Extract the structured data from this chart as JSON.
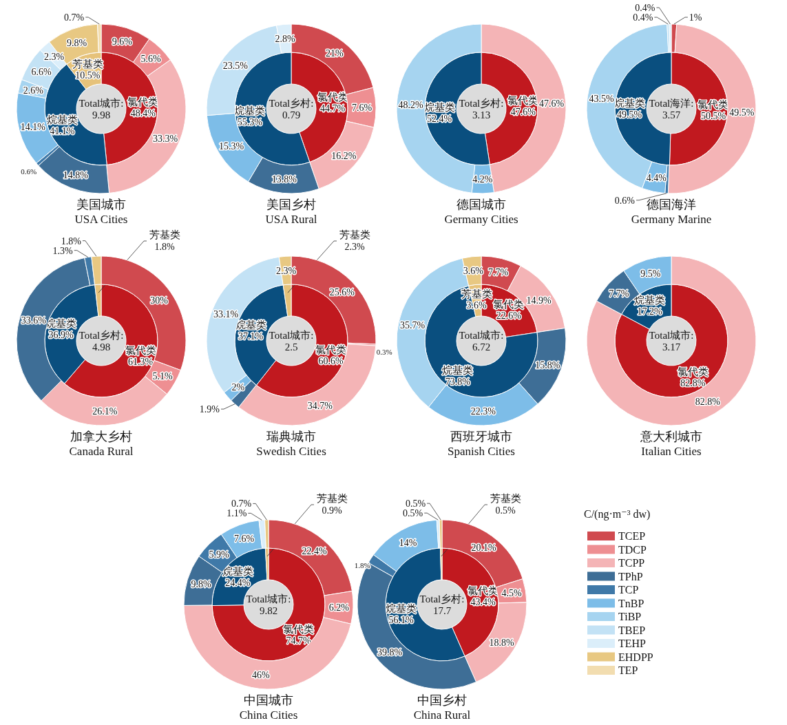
{
  "chart_data": [
    {
      "type": "donut",
      "title": "美国城市",
      "subtitle": "USA Cities",
      "annotations": [
        "Total城市:",
        "9.98"
      ],
      "categories": [
        "氯代类",
        "烷基类",
        "芳基类"
      ],
      "values": [
        48.4,
        41.1,
        10.5
      ],
      "colors": [
        "#c1191f",
        "#0a4f7f",
        "#e6c27a"
      ],
      "value_labels": [
        "48.4%",
        "41.1%",
        "10.5%"
      ]
    },
    {
      "type": "donut",
      "legend": "bottom right",
      "legend_title": "C/(ng·m⁻³ dw)",
      "categories": [
        "TCEP",
        "TDCP",
        "TCPP",
        "TPhP",
        "TCP",
        "TnBP",
        "TiBP",
        "TBEP",
        "TEHP",
        "EHDPP",
        "TEP"
      ],
      "values": [
        9.6,
        5.6,
        33.3,
        14.8,
        0.6,
        14.1,
        2.6,
        6.6,
        2.3,
        9.8,
        0.7
      ],
      "colors": [
        "#d04a4f",
        "#ee8f92",
        "#f4b4b6",
        "#3e6e96",
        "#3f79a8",
        "#7dbde8",
        "#a6d4f0",
        "#c3e2f5",
        "#dbeefa",
        "#e8c882",
        "#f2ddb0"
      ],
      "value_labels": [
        "9.6%",
        "5.6%",
        "33.3%",
        "14.8%",
        "0.6%",
        "14.1%",
        "2.6%",
        "6.6%",
        "2.3%",
        "9.8%",
        "0.7%"
      ]
    },
    {
      "type": "donut",
      "title": "美国乡村",
      "subtitle": "USA Rural",
      "annotations": [
        "Total乡村:",
        "0.79"
      ],
      "categories": [
        "氯代类",
        "烷基类"
      ],
      "values": [
        44.7,
        55.3
      ],
      "colors": [
        "#c1191f",
        "#0a4f7f"
      ],
      "value_labels": [
        "44.7%",
        "55.3%"
      ]
    },
    {
      "type": "donut",
      "categories": [
        null,
        null,
        null,
        null,
        null,
        null,
        null
      ],
      "values": [
        21,
        7.6,
        16.2,
        13.8,
        15.3,
        23.5,
        2.8
      ],
      "colors": [
        "#d04a4f",
        "#ee8f92",
        "#f4b4b6",
        "#3e6e96",
        "#7dbde8",
        "#c3e2f5",
        "#dbeefa"
      ],
      "value_labels": [
        "21%",
        "7.6%",
        "16.2%",
        "13.8%",
        "15.3%",
        "23.5%",
        "2.8%"
      ]
    },
    {
      "type": "donut",
      "title": "德国城市",
      "subtitle": "Germany Cities",
      "annotations": [
        "Total乡村:",
        "3.13"
      ],
      "categories": [
        "氯代类",
        "烷基类"
      ],
      "values": [
        47.6,
        52.4
      ],
      "colors": [
        "#c1191f",
        "#0a4f7f"
      ],
      "value_labels": [
        "47.6%",
        "52.4%"
      ]
    },
    {
      "type": "donut",
      "categories": [
        null,
        null,
        null
      ],
      "values": [
        47.6,
        4.2,
        48.2
      ],
      "colors": [
        "#f4b4b6",
        "#7dbde8",
        "#a6d4f0"
      ],
      "value_labels": [
        "47.6%",
        "4.2%",
        "48.2%"
      ]
    },
    {
      "type": "donut",
      "title": "德国海洋",
      "subtitle": "Germany Marine",
      "annotations": [
        "Total海洋:",
        "3.57"
      ],
      "categories": [
        "氯代类",
        "烷基类"
      ],
      "values": [
        50.5,
        49.5
      ],
      "colors": [
        "#c1191f",
        "#0a4f7f"
      ],
      "value_labels": [
        "50.5%",
        "49.5%"
      ]
    },
    {
      "type": "donut",
      "categories": [
        null,
        null,
        null,
        null,
        null,
        null,
        null
      ],
      "values": [
        1,
        49.5,
        0.6,
        4.4,
        43.5,
        0.4,
        0.4
      ],
      "colors": [
        "#d04a4f",
        "#f4b4b6",
        "#3f79a8",
        "#7dbde8",
        "#a6d4f0",
        "#c3e2f5",
        "#dbeefa"
      ],
      "value_labels": [
        "1%",
        "49.5%",
        "0.6%",
        "4.4%",
        "43.5%",
        "0.4%",
        "0.4%"
      ]
    },
    {
      "type": "donut",
      "title": "加拿大乡村",
      "subtitle": "Canada Rural",
      "annotations": [
        "Total乡村:",
        "4.98"
      ],
      "categories": [
        "氯代类",
        "烷基类",
        "芳基类"
      ],
      "values": [
        61.3,
        36.9,
        1.8
      ],
      "colors": [
        "#c1191f",
        "#0a4f7f",
        "#e6c27a"
      ],
      "value_labels": [
        "61.3%",
        "36.9%",
        "1.8%"
      ]
    },
    {
      "type": "donut",
      "categories": [
        null,
        null,
        null,
        null,
        null,
        null
      ],
      "values": [
        30,
        5.1,
        26.1,
        33.6,
        1.3,
        1.8
      ],
      "colors": [
        "#d04a4f",
        "#ee8f92",
        "#f4b4b6",
        "#3e6e96",
        "#3f79a8",
        "#e8c882"
      ],
      "value_labels": [
        "30%",
        "5.1%",
        "26.1%",
        "33.6%",
        "1.3%",
        "1.8%"
      ]
    },
    {
      "type": "donut",
      "title": "瑞典城市",
      "subtitle": "Swedish Cities",
      "annotations": [
        "Total城市:",
        "2.5"
      ],
      "categories": [
        "氯代类",
        "烷基类",
        "芳基类"
      ],
      "values": [
        60.6,
        37.1,
        2.3
      ],
      "colors": [
        "#c1191f",
        "#0a4f7f",
        "#e6c27a"
      ],
      "value_labels": [
        "60.6%",
        "37.1%",
        "2.3%"
      ]
    },
    {
      "type": "donut",
      "categories": [
        null,
        null,
        null,
        null,
        null,
        null,
        null
      ],
      "values": [
        25.6,
        0.3,
        34.7,
        1.9,
        2,
        33.1,
        2.3
      ],
      "colors": [
        "#d04a4f",
        "#ee8f92",
        "#f4b4b6",
        "#3e6e96",
        "#7dbde8",
        "#c3e2f5",
        "#e8c882"
      ],
      "value_labels": [
        "25.6%",
        "0.3%",
        "34.7%",
        "1.9%",
        "2%",
        "33.1%",
        "2.3%"
      ]
    },
    {
      "type": "donut",
      "title": "西班牙城市",
      "subtitle": "Spanish Cities",
      "annotations": [
        "Total城市:",
        "6.72"
      ],
      "categories": [
        "氯代类",
        "烷基类",
        "芳基类"
      ],
      "values": [
        22.6,
        73.8,
        3.6
      ],
      "colors": [
        "#c1191f",
        "#0a4f7f",
        "#e6c27a"
      ],
      "value_labels": [
        "22.6%",
        "73.8%",
        "3.6%"
      ]
    },
    {
      "type": "donut",
      "categories": [
        null,
        null,
        null,
        null,
        null,
        null
      ],
      "values": [
        7.7,
        14.9,
        15.8,
        22.3,
        35.7,
        3.6
      ],
      "colors": [
        "#d04a4f",
        "#f4b4b6",
        "#3e6e96",
        "#7dbde8",
        "#a6d4f0",
        "#e8c882"
      ],
      "value_labels": [
        "7.7%",
        "14.9%",
        "15.8%",
        "22.3%",
        "35.7%",
        "3.6%"
      ]
    },
    {
      "type": "donut",
      "title": "意大利城市",
      "subtitle": "Italian Cities",
      "annotations": [
        "Total城市:",
        "3.17"
      ],
      "categories": [
        "氯代类",
        "烷基类"
      ],
      "values": [
        82.8,
        17.2
      ],
      "colors": [
        "#c1191f",
        "#0a4f7f"
      ],
      "value_labels": [
        "82.8%",
        "17.2%"
      ]
    },
    {
      "type": "donut",
      "categories": [
        null,
        null,
        null
      ],
      "values": [
        82.8,
        7.7,
        9.5
      ],
      "colors": [
        "#f4b4b6",
        "#3e6e96",
        "#7dbde8"
      ],
      "value_labels": [
        "82.8%",
        "7.7%",
        "9.5%"
      ]
    },
    {
      "type": "donut",
      "title": "中国城市",
      "subtitle": "China Cities",
      "annotations": [
        "Total城市:",
        "9.82"
      ],
      "categories": [
        "氯代类",
        "烷基类",
        "芳基类"
      ],
      "values": [
        74.7,
        24.4,
        0.9
      ],
      "colors": [
        "#c1191f",
        "#0a4f7f",
        "#e6c27a"
      ],
      "value_labels": [
        "74.7%",
        "24.4%",
        "0.9%"
      ]
    },
    {
      "type": "donut",
      "categories": [
        null,
        null,
        null,
        null,
        null,
        null,
        null,
        null
      ],
      "values": [
        22.4,
        6.2,
        46,
        9.8,
        5.9,
        7.6,
        1.1,
        0.7
      ],
      "colors": [
        "#d04a4f",
        "#ee8f92",
        "#f4b4b6",
        "#3e6e96",
        "#3f79a8",
        "#7dbde8",
        "#dbeefa",
        "#e8c882"
      ],
      "value_labels": [
        "22.4%",
        "6.2%",
        "46%",
        "9.8%",
        "5.9%",
        "7.6%",
        "1.1%",
        "0.7%"
      ]
    },
    {
      "type": "donut",
      "title": "中国乡村",
      "subtitle": "China Rural",
      "annotations": [
        "Total乡村:",
        "17.7"
      ],
      "categories": [
        "氯代类",
        "烷基类",
        "芳基类"
      ],
      "values": [
        43.4,
        56.1,
        0.5
      ],
      "colors": [
        "#c1191f",
        "#0a4f7f",
        "#e6c27a"
      ],
      "value_labels": [
        "43.4%",
        "56.1%",
        "0.5%"
      ]
    },
    {
      "type": "donut",
      "categories": [
        null,
        null,
        null,
        null,
        null,
        null,
        null,
        null
      ],
      "values": [
        20.1,
        4.5,
        18.8,
        39.8,
        1.8,
        14,
        0.5,
        0.5
      ],
      "colors": [
        "#d04a4f",
        "#ee8f92",
        "#f4b4b6",
        "#3e6e96",
        "#3f79a8",
        "#7dbde8",
        "#dbeefa",
        "#e8c882"
      ],
      "value_labels": [
        "20.1%",
        "4.5%",
        "18.8%",
        "39.8%",
        "1.8%",
        "14%",
        "0.5%",
        "0.5%"
      ]
    }
  ]
}
